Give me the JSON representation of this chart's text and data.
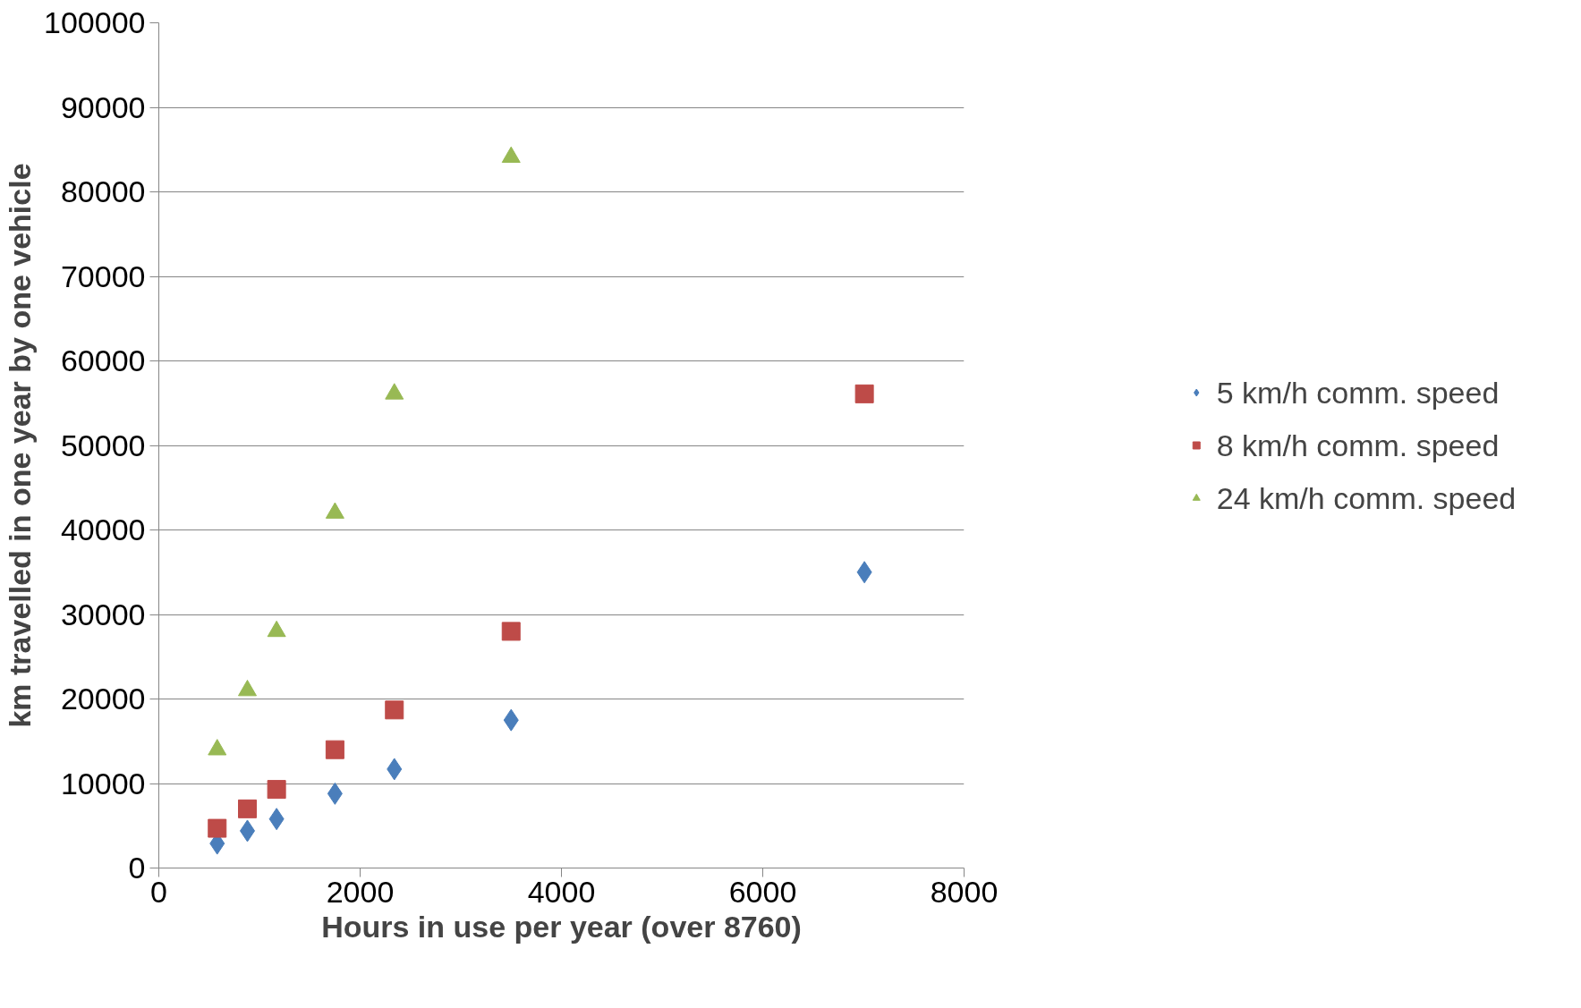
{
  "chart_data": {
    "type": "scatter",
    "xlabel": "Hours in use per year (over 8760)",
    "ylabel": "km travelled in one year by one vehicle",
    "x": [
      580,
      880,
      1170,
      1750,
      2340,
      3500,
      7010
    ],
    "series": [
      {
        "name": "5 km/h comm. speed",
        "color": "#4a7ebb",
        "marker": "diamond",
        "values": [
          2900,
          4400,
          5800,
          8800,
          11700,
          17500,
          35000
        ]
      },
      {
        "name": "8 km/h comm. speed",
        "color": "#be4b48",
        "marker": "square",
        "values": [
          4700,
          7000,
          9300,
          14000,
          18700,
          28000,
          56100
        ]
      },
      {
        "name": "24 km/h comm. speed",
        "color": "#98b954",
        "marker": "triangle",
        "values": [
          14000,
          21000,
          28000,
          42000,
          56100,
          84100,
          null
        ]
      }
    ],
    "xlim": [
      0,
      8000
    ],
    "xticks": [
      0,
      2000,
      4000,
      6000,
      8000
    ],
    "ylim": [
      0,
      100000
    ],
    "yticks": [
      0,
      10000,
      20000,
      30000,
      40000,
      50000,
      60000,
      70000,
      80000,
      90000,
      100000
    ],
    "grid": "y",
    "legend": "right"
  }
}
